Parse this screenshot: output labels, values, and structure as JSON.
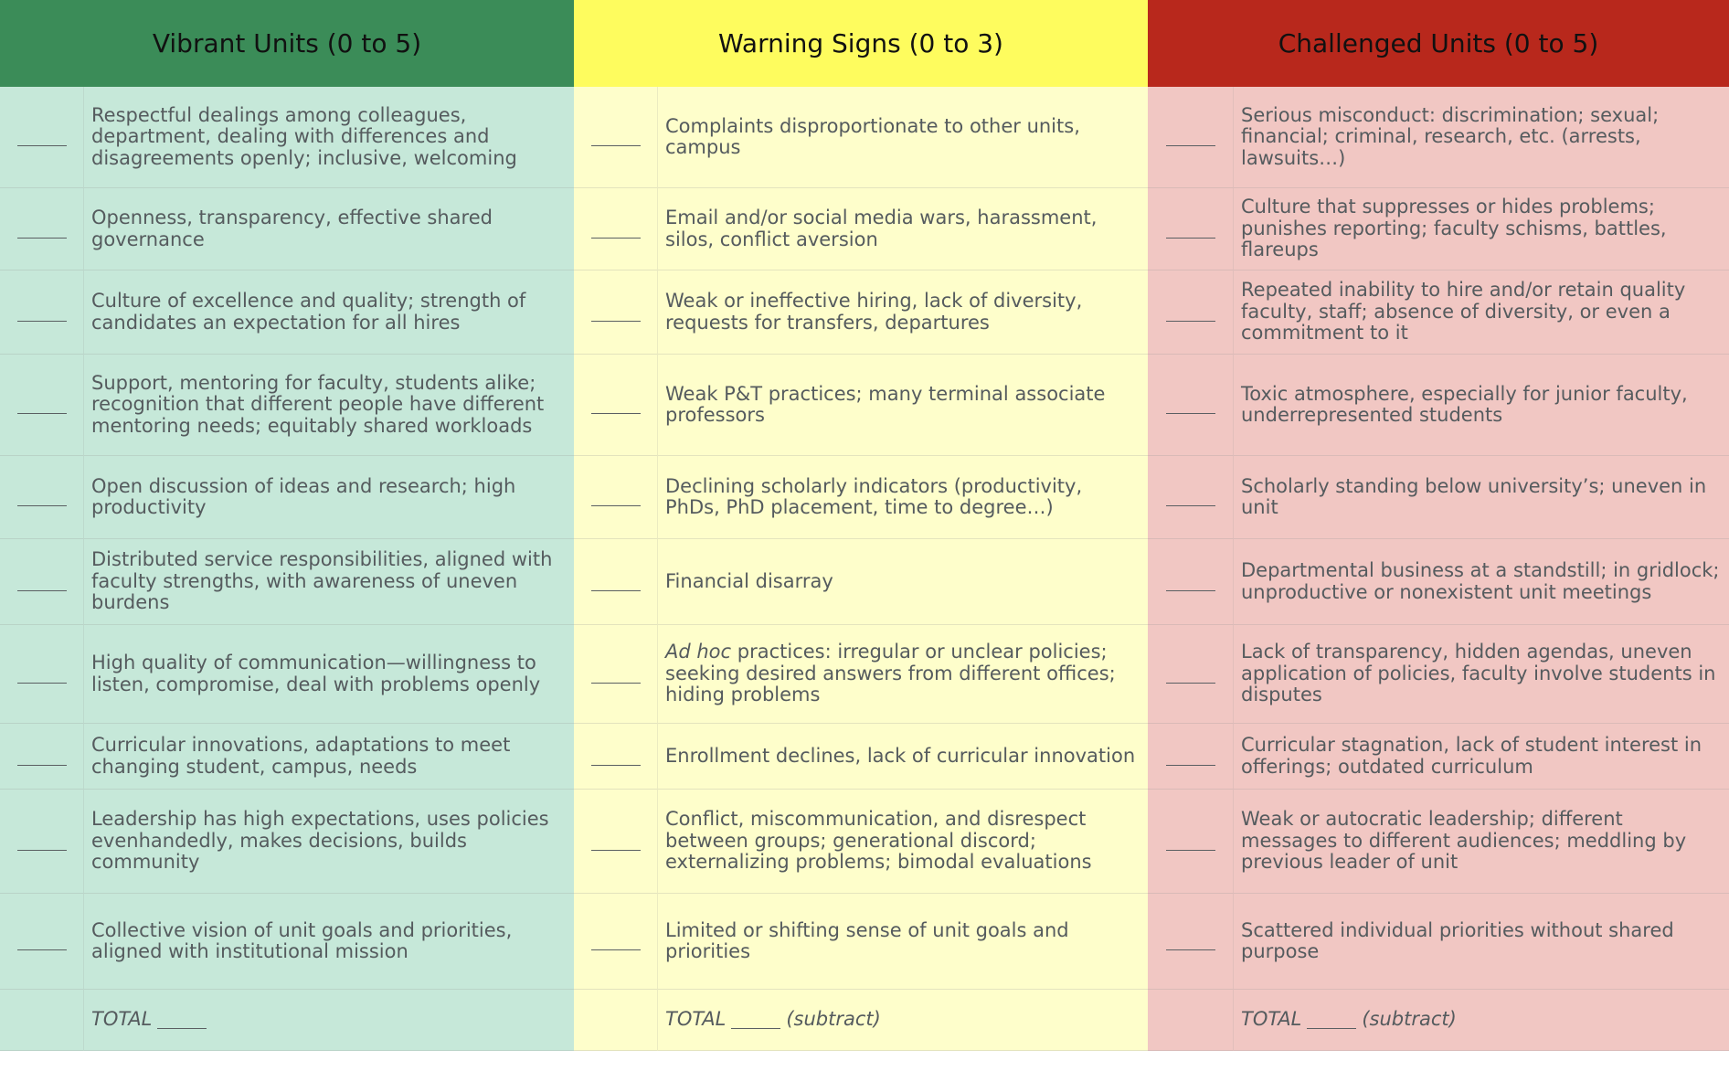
{
  "headers": {
    "vibrant": "Vibrant Units (0 to 5)",
    "warning": "Warning Signs (0 to 3)",
    "challenged": "Challenged Units (0 to 5)"
  },
  "rows": [
    {
      "vibrant": "Respectful dealings among colleagues, department, dealing with differences and disagreements openly; inclusive, welcoming",
      "warning": "Complaints disproportionate to other units, campus",
      "challenged": "Serious misconduct: discrimination; sexual; financial; criminal, research, etc. (arrests, lawsuits…)"
    },
    {
      "vibrant": "Openness, transparency, effective shared governance",
      "warning": "Email and/or social media wars, harassment, silos, conflict aversion",
      "challenged": "Culture that suppresses or hides problems; punishes reporting; faculty schisms, battles, flareups"
    },
    {
      "vibrant": "Culture of excellence and quality; strength of candidates an expectation for all hires",
      "warning": "Weak or ineffective hiring, lack of diversity, requests for transfers, departures",
      "challenged": "Repeated inability to hire and/or retain quality faculty, staff; absence of diversity, or even a commitment to it"
    },
    {
      "vibrant": "Support, mentoring for faculty, students alike; recognition that different people have different mentoring needs; equitably shared workloads",
      "warning": "Weak P&T practices; many terminal associate professors",
      "challenged": "Toxic atmosphere, especially for junior faculty, underrepresented students"
    },
    {
      "vibrant": "Open discussion of ideas and research; high productivity",
      "warning": "Declining scholarly indicators (productivity, PhDs, PhD placement, time to degree…)",
      "challenged": "Scholarly standing below university’s; uneven in unit"
    },
    {
      "vibrant": "Distributed service responsibilities, aligned with faculty strengths, with awareness of uneven burdens",
      "warning": "Financial disarray",
      "challenged": "Departmental business at a standstill; in gridlock; unproductive or nonexistent unit meetings"
    },
    {
      "vibrant": "High quality of communication—willingness to listen, compromise, deal with problems openly",
      "warning_italic": "Ad hoc",
      "warning": " practices: irregular or unclear policies; seeking desired answers from different offices; hiding problems",
      "challenged": "Lack of transparency, hidden agendas, uneven application of policies, faculty involve students in disputes"
    },
    {
      "vibrant": "Curricular innovations, adaptations to meet changing student, campus, needs",
      "warning": "Enrollment declines, lack of curricular innovation",
      "challenged": "Curricular stagnation, lack of student interest in offerings; outdated curriculum"
    },
    {
      "vibrant": "Leadership has high expectations, uses policies evenhandedly, makes decisions, builds community",
      "warning": "Conflict, miscommunication, and disrespect between groups; generational discord; externalizing problems; bimodal evaluations",
      "challenged": "Weak or autocratic leadership; different messages to different audiences; meddling by previous leader of unit"
    },
    {
      "vibrant": "Collective vision of unit goals and priorities, aligned with institutional mission",
      "warning": "Limited or shifting sense of unit goals and priorities",
      "challenged": "Scattered individual priorities without shared purpose"
    }
  ],
  "totals": {
    "label": "TOTAL",
    "subtract": "(subtract)"
  },
  "colors": {
    "green_header": "#3b8c58",
    "yellow_header": "#fefc5e",
    "red_header": "#b8281c",
    "green_body": "#c6e8d9",
    "yellow_body": "#fefecb",
    "red_body": "#f1c7c3"
  }
}
